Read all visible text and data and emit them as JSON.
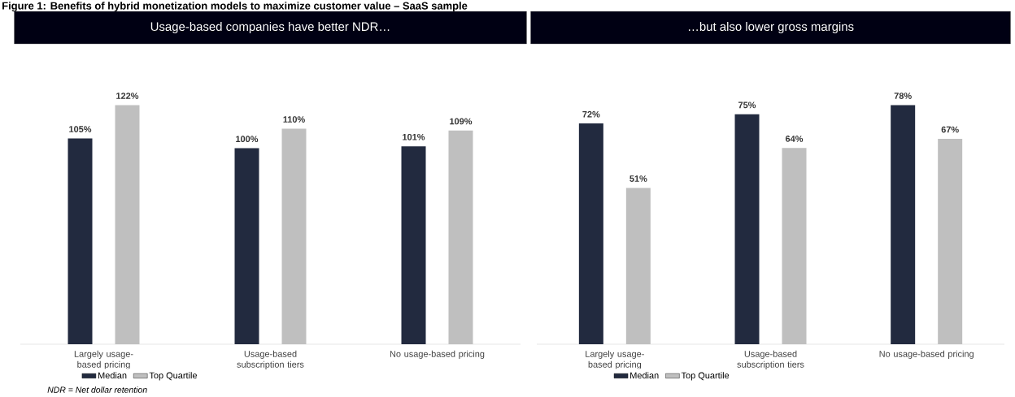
{
  "chart_data": [
    {
      "type": "bar",
      "title": "Usage-based companies have better NDR…",
      "categories": [
        "Largely usage-based pricing",
        "Usage-based subscription tiers",
        "No usage-based pricing"
      ],
      "series": [
        {
          "name": "Median",
          "color": "#222a3f",
          "values": [
            105,
            100,
            101
          ],
          "value_labels": [
            "105%",
            "100%",
            "101%"
          ]
        },
        {
          "name": "Top Quartile",
          "color": "#bfbfbf",
          "values": [
            122,
            110,
            109
          ],
          "value_labels": [
            "122%",
            "110%",
            "109%"
          ]
        }
      ],
      "data_labels": true,
      "legend": "bottom",
      "annotations": [
        "Figure 1: Benefits of hybrid monetization models to maximize customer value – SaaS sample",
        "NDR = Net dollar retention"
      ]
    },
    {
      "type": "bar",
      "title": "…but also lower gross margins",
      "categories": [
        "Largely usage-based pricing",
        "Usage-based subscription tiers",
        "No usage-based pricing"
      ],
      "series": [
        {
          "name": "Median",
          "color": "#222a3f",
          "values": [
            72,
            75,
            78
          ],
          "value_labels": [
            "72%",
            "75%",
            "78%"
          ]
        },
        {
          "name": "Top Quartile",
          "color": "#bfbfbf",
          "values": [
            51,
            64,
            67
          ],
          "value_labels": [
            "51%",
            "64%",
            "67%"
          ]
        }
      ],
      "data_labels": true,
      "legend": "bottom"
    }
  ]
}
